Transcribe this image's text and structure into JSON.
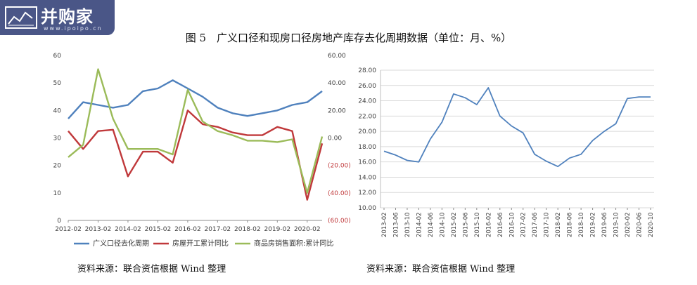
{
  "logo": {
    "word": "并购家",
    "url": "www.ipoipo.cn"
  },
  "figure_title": "图 5　广义口径和现房口径房地产库存去化周期数据（单位：月、%）",
  "source_left": "资料来源：联合资信根据 Wind 整理",
  "source_right": "资料来源：联合资信根据 Wind 整理",
  "colors": {
    "blue": "#4f81bd",
    "red": "#c0393b",
    "green": "#9bbb59",
    "grid": "#d9d9d9",
    "axis": "#8c8c8c"
  },
  "chart_data": [
    {
      "type": "line",
      "title": "",
      "x": [
        "2012-02",
        "2012-08",
        "2013-02",
        "2013-08",
        "2014-02",
        "2014-08",
        "2015-02",
        "2015-08",
        "2016-02",
        "2016-08",
        "2017-02",
        "2017-08",
        "2018-02",
        "2018-08",
        "2019-02",
        "2019-08",
        "2020-02",
        "2020-08"
      ],
      "x_tick_labels": [
        "2012-02",
        "2013-02",
        "2014-02",
        "2015-02",
        "2016-02",
        "2017-02",
        "2018-02",
        "2019-02",
        "2020-02"
      ],
      "y_left": {
        "lim": [
          0,
          60
        ],
        "ticks": [
          "0",
          "10",
          "20",
          "30",
          "40",
          "50",
          "60"
        ]
      },
      "y_right": {
        "lim": [
          -60,
          60
        ],
        "ticks": [
          "(60.00)",
          "(40.00)",
          "(20.00)",
          "0.00",
          "20.00",
          "40.00",
          "60.00"
        ]
      },
      "grid": false,
      "legend": "bottom",
      "series": [
        {
          "name": "广义口径去化周期",
          "axis": "left",
          "color": "#4f81bd",
          "values": [
            37,
            43,
            42,
            41,
            42,
            47,
            48,
            51,
            48,
            45,
            41,
            39,
            38,
            39,
            40,
            42,
            43,
            47
          ]
        },
        {
          "name": "房屋开工累计同比",
          "axis": "right",
          "color": "#c0393b",
          "values": [
            5,
            -8,
            5,
            6,
            -28,
            -10,
            -10,
            -18,
            20,
            10,
            8,
            4,
            2,
            2,
            8,
            5,
            -45,
            -4
          ]
        },
        {
          "name": "商品房销售面积:累计同比",
          "axis": "right",
          "color": "#9bbb59",
          "values": [
            -14,
            -5,
            50,
            14,
            -8,
            -8,
            -8,
            -12,
            35,
            12,
            5,
            2,
            -2,
            -2,
            -3,
            -1,
            -40,
            1
          ]
        }
      ]
    },
    {
      "type": "line",
      "title": "",
      "x": [
        "2013-02",
        "2013-06",
        "2013-10",
        "2014-02",
        "2014-06",
        "2014-10",
        "2015-02",
        "2015-06",
        "2015-10",
        "2016-02",
        "2016-06",
        "2016-10",
        "2017-02",
        "2017-06",
        "2017-10",
        "2018-02",
        "2018-06",
        "2018-10",
        "2019-02",
        "2019-06",
        "2019-10",
        "2020-02",
        "2020-06",
        "2020-10"
      ],
      "y": {
        "lim": [
          10,
          28
        ],
        "ticks": [
          "10.00",
          "12.00",
          "14.00",
          "16.00",
          "18.00",
          "20.00",
          "22.00",
          "24.00",
          "26.00",
          "28.00"
        ]
      },
      "grid": true,
      "legend": "none",
      "series": [
        {
          "color": "#4f81bd",
          "values": [
            17.4,
            16.9,
            16.2,
            16.0,
            19.0,
            21.2,
            24.9,
            24.4,
            23.5,
            25.7,
            22.0,
            20.7,
            19.8,
            17.0,
            16.1,
            15.4,
            16.5,
            17.0,
            18.8,
            20.0,
            21.0,
            24.3,
            24.5,
            24.5
          ]
        }
      ]
    }
  ]
}
